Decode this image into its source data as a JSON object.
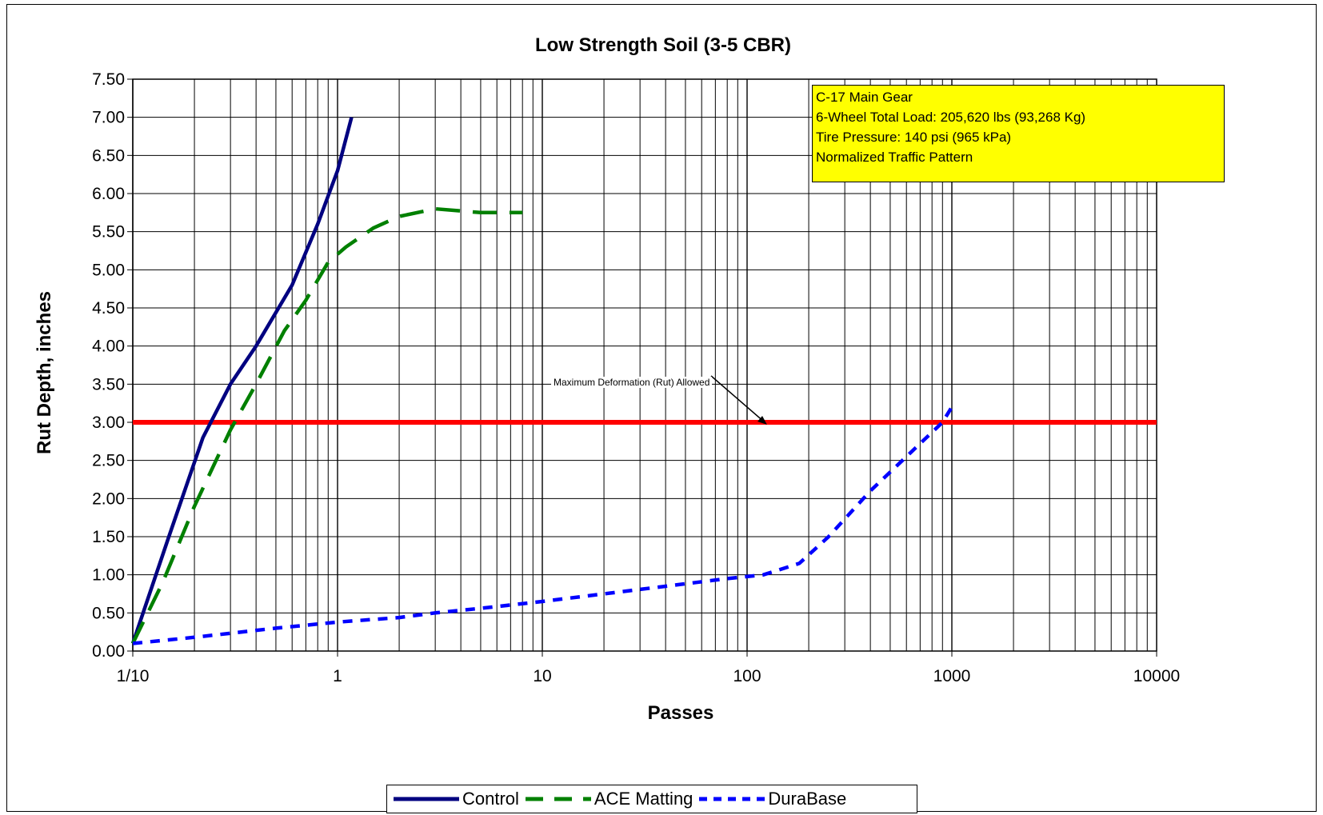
{
  "chart_data": {
    "type": "line",
    "title": "Low Strength Soil (3-5 CBR)",
    "xlabel": "Passes",
    "ylabel": "Rut Depth, inches",
    "x_scale": "log",
    "xlim": [
      0.1,
      10000
    ],
    "ylim": [
      0,
      7.5
    ],
    "x_tick_labels": [
      "1/10",
      "1",
      "10",
      "100",
      "1000",
      "10000"
    ],
    "x_tick_values": [
      0.1,
      1,
      10,
      100,
      1000,
      10000
    ],
    "y_tick_labels": [
      "0.00",
      "0.50",
      "1.00",
      "1.50",
      "2.00",
      "2.50",
      "3.00",
      "3.50",
      "4.00",
      "4.50",
      "5.00",
      "5.50",
      "6.00",
      "6.50",
      "7.00",
      "7.50"
    ],
    "grid": true,
    "legend_position": "bottom",
    "series": [
      {
        "name": "Control",
        "color": "#000080",
        "style": "solid",
        "x": [
          0.1,
          0.15,
          0.22,
          0.3,
          0.4,
          0.6,
          0.8,
          1.0,
          1.17
        ],
        "y": [
          0.1,
          1.5,
          2.8,
          3.5,
          4.0,
          4.8,
          5.6,
          6.3,
          7.0
        ]
      },
      {
        "name": "ACE Matting",
        "color": "#008000",
        "style": "dashed",
        "x": [
          0.1,
          0.14,
          0.2,
          0.3,
          0.4,
          0.55,
          0.7,
          0.9,
          1.1,
          1.5,
          2.0,
          3.0,
          5.0,
          8.0
        ],
        "y": [
          0.1,
          0.9,
          1.9,
          2.9,
          3.5,
          4.2,
          4.6,
          5.1,
          5.3,
          5.55,
          5.7,
          5.8,
          5.75,
          5.75
        ]
      },
      {
        "name": "DuraBase",
        "color": "#0000ff",
        "style": "dashed",
        "x": [
          0.1,
          0.2,
          0.5,
          1.0,
          2.0,
          3.0,
          5.0,
          10,
          20,
          40,
          80,
          120,
          180,
          250,
          400,
          600,
          900,
          1000
        ],
        "y": [
          0.1,
          0.18,
          0.3,
          0.38,
          0.44,
          0.5,
          0.56,
          0.65,
          0.75,
          0.85,
          0.95,
          1.0,
          1.15,
          1.5,
          2.1,
          2.55,
          3.0,
          3.2
        ]
      }
    ],
    "reference_lines": [
      {
        "label": "Maximum Deformation (Rut) Allowed",
        "y": 3.0,
        "color": "#ff0000"
      }
    ]
  },
  "info_box": {
    "line1": "C-17 Main Gear",
    "line2": "6-Wheel Total Load: 205,620 lbs (93,268 Kg)",
    "line3": "Tire Pressure: 140 psi (965 kPa)",
    "line4": "Normalized Traffic Pattern"
  },
  "legend": {
    "control": "Control",
    "ace": "ACE Matting",
    "durabase": "DuraBase"
  },
  "annotation": {
    "text": "Maximum Deformation (Rut) Allowed"
  }
}
